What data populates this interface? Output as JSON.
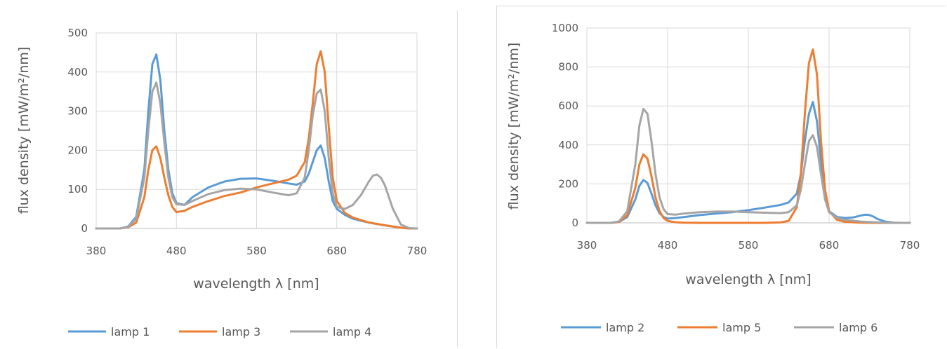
{
  "chart_data": [
    {
      "type": "line",
      "title": "",
      "xlabel": "wavelength λ [nm]",
      "ylabel": "flux density [mW/m²/nm]",
      "xlim": [
        380,
        780
      ],
      "ylim": [
        0,
        500
      ],
      "xticks": [
        380,
        480,
        580,
        680,
        780
      ],
      "yticks": [
        0,
        100,
        200,
        300,
        400,
        500
      ],
      "grid": true,
      "legend": "bottom",
      "series": [
        {
          "name": "lamp 1",
          "color": "#5b9bd5",
          "x": [
            380,
            410,
            420,
            430,
            440,
            445,
            450,
            455,
            460,
            465,
            470,
            475,
            480,
            490,
            500,
            520,
            540,
            560,
            580,
            600,
            620,
            630,
            640,
            645,
            650,
            655,
            660,
            665,
            670,
            675,
            680,
            690,
            700,
            720,
            740,
            760,
            770,
            780
          ],
          "y": [
            0,
            0,
            5,
            30,
            150,
            300,
            420,
            445,
            380,
            250,
            150,
            90,
            65,
            60,
            80,
            105,
            120,
            127,
            128,
            122,
            115,
            112,
            120,
            140,
            170,
            200,
            212,
            180,
            120,
            70,
            50,
            35,
            25,
            15,
            8,
            2,
            0,
            0
          ]
        },
        {
          "name": "lamp 3",
          "color": "#ed7d31",
          "x": [
            380,
            410,
            420,
            430,
            440,
            445,
            450,
            455,
            460,
            465,
            470,
            475,
            480,
            490,
            500,
            520,
            540,
            560,
            580,
            600,
            620,
            630,
            640,
            645,
            650,
            655,
            660,
            665,
            670,
            675,
            680,
            690,
            700,
            720,
            740,
            760,
            770,
            780
          ],
          "y": [
            0,
            0,
            3,
            15,
            80,
            150,
            200,
            210,
            180,
            130,
            85,
            55,
            42,
            45,
            55,
            70,
            83,
            92,
            105,
            115,
            125,
            135,
            170,
            230,
            320,
            420,
            453,
            400,
            260,
            130,
            70,
            40,
            28,
            15,
            8,
            2,
            0,
            0
          ]
        },
        {
          "name": "lamp 4",
          "color": "#a5a5a5",
          "x": [
            380,
            410,
            420,
            430,
            440,
            445,
            450,
            455,
            460,
            465,
            470,
            475,
            480,
            490,
            500,
            520,
            540,
            560,
            580,
            600,
            620,
            630,
            640,
            645,
            650,
            655,
            660,
            665,
            670,
            675,
            680,
            690,
            700,
            710,
            720,
            725,
            730,
            735,
            740,
            750,
            760,
            770,
            780
          ],
          "y": [
            0,
            0,
            4,
            25,
            130,
            250,
            350,
            373,
            320,
            220,
            130,
            80,
            62,
            60,
            70,
            88,
            98,
            102,
            100,
            92,
            85,
            90,
            130,
            200,
            290,
            345,
            355,
            300,
            180,
            90,
            55,
            50,
            60,
            85,
            120,
            135,
            138,
            130,
            110,
            50,
            10,
            1,
            0
          ]
        }
      ]
    },
    {
      "type": "line",
      "title": "",
      "xlabel": "wavelength λ [nm]",
      "ylabel": "flux density [mW/m²/nm]",
      "xlim": [
        380,
        780
      ],
      "ylim": [
        0,
        1000
      ],
      "xticks": [
        380,
        480,
        580,
        680,
        780
      ],
      "yticks": [
        0,
        200,
        400,
        600,
        800,
        1000
      ],
      "grid": true,
      "legend": "bottom",
      "series": [
        {
          "name": "lamp 2",
          "color": "#5b9bd5",
          "x": [
            380,
            410,
            420,
            430,
            440,
            445,
            450,
            455,
            460,
            465,
            470,
            475,
            480,
            490,
            500,
            520,
            540,
            560,
            580,
            600,
            620,
            630,
            640,
            645,
            650,
            655,
            660,
            665,
            670,
            675,
            680,
            690,
            700,
            710,
            720,
            725,
            730,
            735,
            740,
            750,
            760,
            770,
            780
          ],
          "y": [
            0,
            0,
            5,
            30,
            120,
            190,
            220,
            205,
            150,
            90,
            50,
            30,
            22,
            25,
            30,
            40,
            48,
            55,
            65,
            78,
            92,
            105,
            150,
            250,
            420,
            560,
            620,
            520,
            320,
            150,
            60,
            30,
            25,
            28,
            38,
            42,
            40,
            32,
            20,
            6,
            1,
            0,
            0
          ]
        },
        {
          "name": "lamp 5",
          "color": "#ed7d31",
          "x": [
            380,
            410,
            420,
            430,
            440,
            445,
            450,
            455,
            460,
            465,
            470,
            475,
            480,
            490,
            500,
            520,
            540,
            560,
            580,
            600,
            620,
            630,
            640,
            645,
            650,
            655,
            660,
            665,
            670,
            675,
            680,
            690,
            700,
            720,
            740,
            760,
            770,
            780
          ],
          "y": [
            0,
            0,
            5,
            40,
            180,
            300,
            352,
            330,
            240,
            130,
            60,
            25,
            10,
            3,
            1,
            0,
            0,
            0,
            0,
            0,
            2,
            10,
            80,
            250,
            560,
            820,
            890,
            760,
            420,
            170,
            60,
            15,
            5,
            1,
            0,
            0,
            0,
            0
          ]
        },
        {
          "name": "lamp 6",
          "color": "#a5a5a5",
          "x": [
            380,
            410,
            420,
            430,
            440,
            445,
            450,
            455,
            460,
            465,
            470,
            475,
            480,
            490,
            500,
            520,
            540,
            560,
            580,
            600,
            620,
            630,
            640,
            645,
            650,
            655,
            660,
            665,
            670,
            675,
            680,
            690,
            700,
            720,
            740,
            760,
            770,
            780
          ],
          "y": [
            0,
            0,
            8,
            60,
            300,
            500,
            585,
            560,
            420,
            250,
            130,
            70,
            45,
            42,
            48,
            55,
            58,
            58,
            55,
            52,
            50,
            55,
            90,
            170,
            300,
            420,
            450,
            390,
            250,
            120,
            55,
            25,
            15,
            6,
            2,
            0,
            0,
            0
          ]
        }
      ]
    }
  ]
}
